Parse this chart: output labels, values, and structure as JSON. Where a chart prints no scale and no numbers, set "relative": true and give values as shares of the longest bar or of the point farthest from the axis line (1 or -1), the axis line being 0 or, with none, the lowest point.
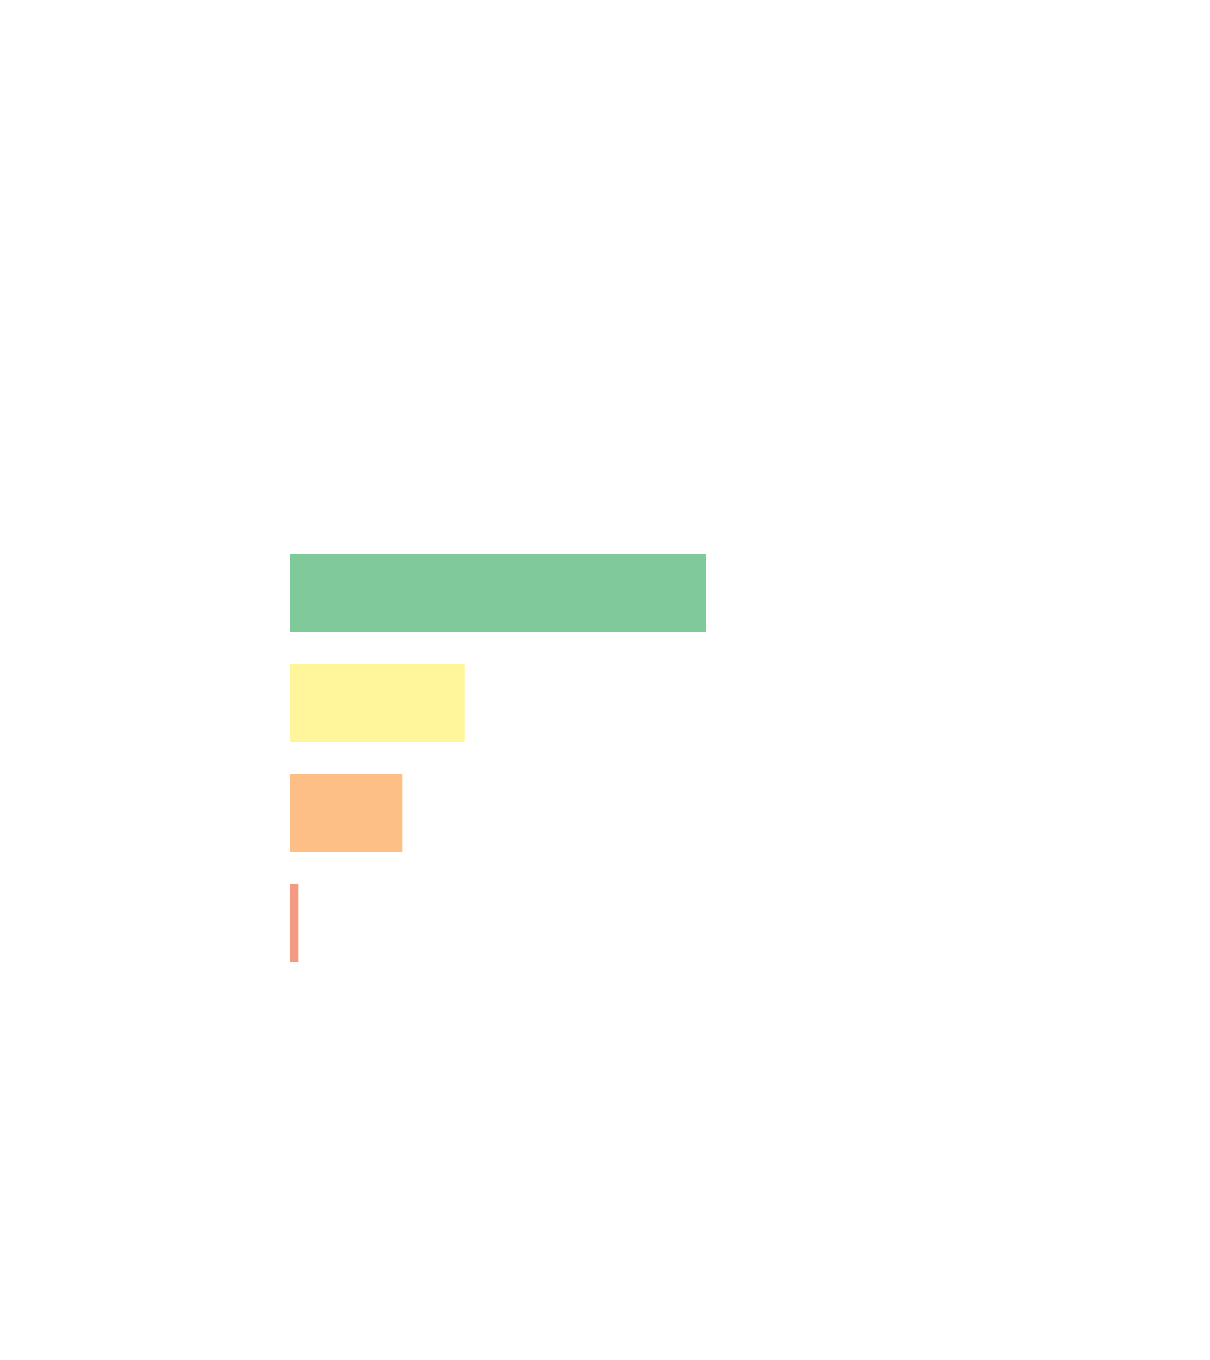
{
  "chart_data": {
    "type": "bar",
    "orientation": "horizontal",
    "relative": true,
    "categories": [
      null,
      null,
      null,
      null
    ],
    "values": [
      1,
      0.42,
      0.27,
      0.02
    ],
    "colors": [
      "#80c99b",
      "#fff59a",
      "#fdbf85",
      "#f59a82"
    ]
  }
}
